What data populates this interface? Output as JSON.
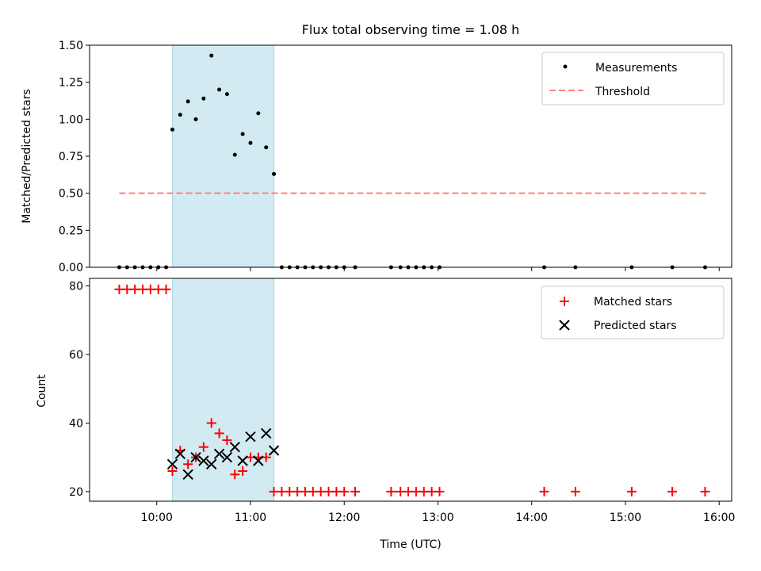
{
  "figure_title": "Flux total observing time = 1.08 h",
  "colors": {
    "span": "#add8e6",
    "measurement": "#000000",
    "threshold": "#ff7f7f",
    "matched": "#ff0000",
    "predicted": "#000000"
  },
  "chart_data": [
    {
      "type": "scatter",
      "ylabel": "Matched/Predicted stars",
      "xlabel": "",
      "ylim": [
        0,
        1.5
      ],
      "xlim": [
        "09:17",
        "16:08"
      ],
      "x_unit": "time UTC",
      "yticks": [
        "0.00",
        "0.25",
        "0.50",
        "0.75",
        "1.00",
        "1.25",
        "1.50"
      ],
      "highlight_span": {
        "from": "10:10",
        "to": "11:15"
      },
      "legend": {
        "position": "upper right",
        "entries": [
          "Measurements",
          "Threshold"
        ]
      },
      "threshold": {
        "name": "Threshold",
        "from": "09:36",
        "to": "15:52",
        "value": 0.5
      },
      "series": [
        {
          "name": "Measurements",
          "marker": "dot",
          "points": [
            [
              "09:36",
              0
            ],
            [
              "09:41",
              0
            ],
            [
              "09:46",
              0
            ],
            [
              "09:51",
              0
            ],
            [
              "09:56",
              0
            ],
            [
              "10:01",
              0
            ],
            [
              "10:06",
              0
            ],
            [
              "10:10",
              0.93
            ],
            [
              "10:15",
              1.03
            ],
            [
              "10:20",
              1.12
            ],
            [
              "10:25",
              1.0
            ],
            [
              "10:30",
              1.14
            ],
            [
              "10:35",
              1.43
            ],
            [
              "10:40",
              1.2
            ],
            [
              "10:45",
              1.17
            ],
            [
              "10:50",
              0.76
            ],
            [
              "10:55",
              0.9
            ],
            [
              "11:00",
              0.84
            ],
            [
              "11:05",
              1.04
            ],
            [
              "11:10",
              0.81
            ],
            [
              "11:15",
              0.63
            ],
            [
              "11:20",
              0
            ],
            [
              "11:25",
              0
            ],
            [
              "11:30",
              0
            ],
            [
              "11:35",
              0
            ],
            [
              "11:40",
              0
            ],
            [
              "11:45",
              0
            ],
            [
              "11:50",
              0
            ],
            [
              "11:55",
              0
            ],
            [
              "12:00",
              0
            ],
            [
              "12:07",
              0
            ],
            [
              "12:30",
              0
            ],
            [
              "12:36",
              0
            ],
            [
              "12:41",
              0
            ],
            [
              "12:46",
              0
            ],
            [
              "12:51",
              0
            ],
            [
              "12:56",
              0
            ],
            [
              "13:01",
              0
            ],
            [
              "14:08",
              0
            ],
            [
              "14:28",
              0
            ],
            [
              "15:04",
              0
            ],
            [
              "15:30",
              0
            ],
            [
              "15:51",
              0
            ]
          ]
        }
      ]
    },
    {
      "type": "scatter",
      "ylabel": "Count",
      "xlabel": "Time (UTC)",
      "ylim": [
        17.2,
        82.2
      ],
      "xlim": [
        "09:17",
        "16:08"
      ],
      "yticks": [
        "20",
        "40",
        "60",
        "80"
      ],
      "xticks": [
        "10:00",
        "11:00",
        "12:00",
        "13:00",
        "14:00",
        "15:00",
        "16:00"
      ],
      "highlight_span": {
        "from": "10:10",
        "to": "11:15"
      },
      "legend": {
        "position": "upper right",
        "entries": [
          "Matched stars",
          "Predicted stars"
        ]
      },
      "series": [
        {
          "name": "Matched stars",
          "marker": "plus",
          "points": [
            [
              "09:36",
              79
            ],
            [
              "09:41",
              79
            ],
            [
              "09:46",
              79
            ],
            [
              "09:51",
              79
            ],
            [
              "09:56",
              79
            ],
            [
              "10:01",
              79
            ],
            [
              "10:06",
              79
            ],
            [
              "10:10",
              26
            ],
            [
              "10:15",
              32
            ],
            [
              "10:20",
              28
            ],
            [
              "10:25",
              30
            ],
            [
              "10:30",
              33
            ],
            [
              "10:35",
              40
            ],
            [
              "10:40",
              37
            ],
            [
              "10:45",
              35
            ],
            [
              "10:50",
              25
            ],
            [
              "10:55",
              26
            ],
            [
              "11:00",
              30
            ],
            [
              "11:05",
              30
            ],
            [
              "11:10",
              30
            ],
            [
              "11:15",
              20
            ],
            [
              "11:20",
              20
            ],
            [
              "11:25",
              20
            ],
            [
              "11:30",
              20
            ],
            [
              "11:35",
              20
            ],
            [
              "11:40",
              20
            ],
            [
              "11:45",
              20
            ],
            [
              "11:50",
              20
            ],
            [
              "11:55",
              20
            ],
            [
              "12:00",
              20
            ],
            [
              "12:07",
              20
            ],
            [
              "12:30",
              20
            ],
            [
              "12:36",
              20
            ],
            [
              "12:41",
              20
            ],
            [
              "12:46",
              20
            ],
            [
              "12:51",
              20
            ],
            [
              "12:56",
              20
            ],
            [
              "13:01",
              20
            ],
            [
              "14:08",
              20
            ],
            [
              "14:28",
              20
            ],
            [
              "15:04",
              20
            ],
            [
              "15:30",
              20
            ],
            [
              "15:51",
              20
            ]
          ]
        },
        {
          "name": "Predicted stars",
          "marker": "x",
          "points": [
            [
              "10:10",
              28
            ],
            [
              "10:15",
              31
            ],
            [
              "10:20",
              25
            ],
            [
              "10:25",
              30
            ],
            [
              "10:30",
              29
            ],
            [
              "10:35",
              28
            ],
            [
              "10:40",
              31
            ],
            [
              "10:45",
              30
            ],
            [
              "10:50",
              33
            ],
            [
              "10:55",
              29
            ],
            [
              "11:00",
              36
            ],
            [
              "11:05",
              29
            ],
            [
              "11:10",
              37
            ],
            [
              "11:15",
              32
            ]
          ]
        }
      ]
    }
  ]
}
